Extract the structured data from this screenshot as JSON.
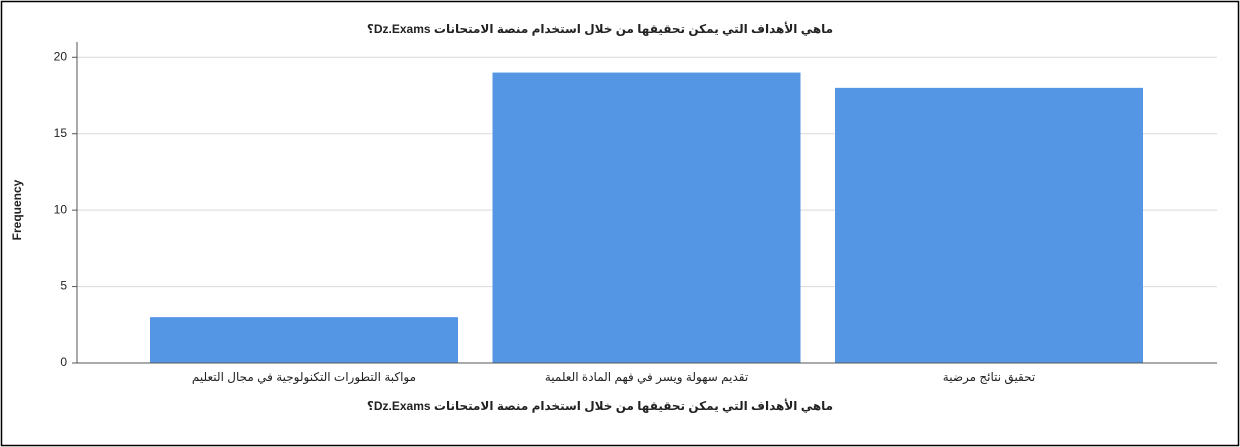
{
  "chart_data": {
    "type": "bar",
    "title": "ماهي الأهداف التي يمكن تحقيقها من خلال استخدام منصة الامتحانات Dz.Exams؟",
    "x_label": "ماهي الأهداف التي يمكن تحقيقها من خلال استخدام منصة الامتحانات Dz.Exams؟",
    "y_label": "Frequency",
    "categories": [
      "مواكبة التطورات التكنولوجية في مجال التعليم",
      "تقديم سهولة ويسر في فهم المادة العلمية",
      "تحقيق نتائج مرضية"
    ],
    "values": [
      3,
      19,
      18
    ],
    "color": "#5596e4",
    "ylim": [
      0,
      21
    ],
    "yticks": [
      0,
      5,
      10,
      15,
      20
    ],
    "grid": true
  }
}
